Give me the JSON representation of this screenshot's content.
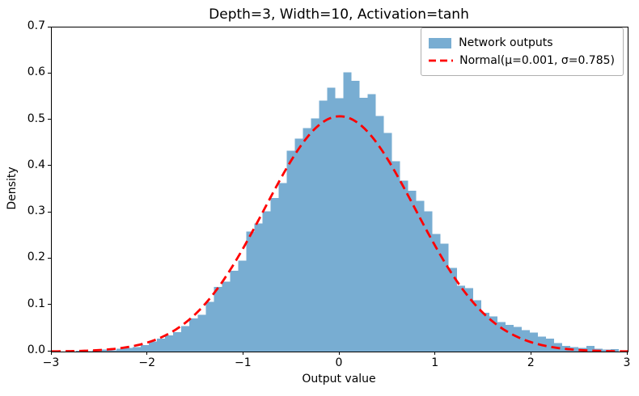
{
  "chart_data": {
    "type": "bar",
    "subtype": "histogram-with-density-curve",
    "title": "Depth=3, Width=10, Activation=tanh",
    "xlabel": "Output value",
    "ylabel": "Density",
    "xlim": [
      -3,
      3
    ],
    "ylim": [
      0,
      0.7
    ],
    "grid": false,
    "legend_position": "upper right",
    "xticks": {
      "values": [
        -3,
        -2,
        -1,
        0,
        1,
        2,
        3
      ],
      "labels": [
        "−3",
        "−2",
        "−1",
        "0",
        "1",
        "2",
        "3"
      ]
    },
    "yticks": {
      "values": [
        0,
        0.1,
        0.2,
        0.3,
        0.4,
        0.5,
        0.6,
        0.7
      ],
      "labels": [
        "0.0",
        "0.1",
        "0.2",
        "0.3",
        "0.4",
        "0.5",
        "0.6",
        "0.7"
      ]
    },
    "histogram": {
      "label": "Network outputs",
      "color": "#78add2",
      "bin_start": -2.747,
      "bin_width": 0.0844,
      "densities": [
        0.002,
        0.001,
        0.003,
        0.004,
        0.003,
        0.006,
        0.008,
        0.01,
        0.014,
        0.022,
        0.028,
        0.035,
        0.042,
        0.055,
        0.072,
        0.079,
        0.107,
        0.14,
        0.151,
        0.175,
        0.196,
        0.259,
        0.277,
        0.303,
        0.332,
        0.364,
        0.434,
        0.46,
        0.483,
        0.504,
        0.542,
        0.57,
        0.547,
        0.603,
        0.585,
        0.548,
        0.556,
        0.509,
        0.472,
        0.411,
        0.369,
        0.347,
        0.326,
        0.303,
        0.254,
        0.233,
        0.181,
        0.142,
        0.137,
        0.111,
        0.084,
        0.076,
        0.064,
        0.058,
        0.053,
        0.046,
        0.041,
        0.032,
        0.028,
        0.018,
        0.012,
        0.01,
        0.008,
        0.012,
        0.006,
        0.004,
        0.005
      ]
    },
    "normal_curve": {
      "label": "Normal(μ=0.001, σ=0.785)",
      "mu": 0.001,
      "sigma": 0.785,
      "peak_density": 0.508,
      "color": "#ff0000",
      "style": "dashed",
      "x_range": [
        -3,
        3
      ]
    }
  }
}
